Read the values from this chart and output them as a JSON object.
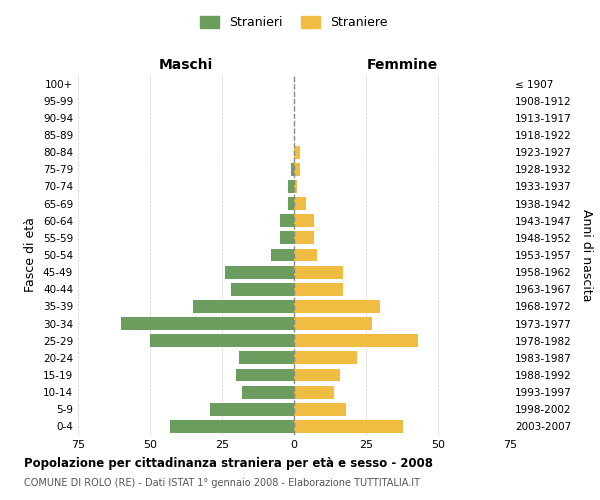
{
  "age_groups": [
    "0-4",
    "5-9",
    "10-14",
    "15-19",
    "20-24",
    "25-29",
    "30-34",
    "35-39",
    "40-44",
    "45-49",
    "50-54",
    "55-59",
    "60-64",
    "65-69",
    "70-74",
    "75-79",
    "80-84",
    "85-89",
    "90-94",
    "95-99",
    "100+"
  ],
  "birth_years": [
    "2003-2007",
    "1998-2002",
    "1993-1997",
    "1988-1992",
    "1983-1987",
    "1978-1982",
    "1973-1977",
    "1968-1972",
    "1963-1967",
    "1958-1962",
    "1953-1957",
    "1948-1952",
    "1943-1947",
    "1938-1942",
    "1933-1937",
    "1928-1932",
    "1923-1927",
    "1918-1922",
    "1913-1917",
    "1908-1912",
    "≤ 1907"
  ],
  "maschi": [
    43,
    29,
    18,
    20,
    19,
    50,
    60,
    35,
    22,
    24,
    8,
    5,
    5,
    2,
    2,
    1,
    0,
    0,
    0,
    0,
    0
  ],
  "femmine": [
    38,
    18,
    14,
    16,
    22,
    43,
    27,
    30,
    17,
    17,
    8,
    7,
    7,
    4,
    1,
    2,
    2,
    0,
    0,
    0,
    0
  ],
  "maschi_color": "#6b9e5e",
  "femmine_color": "#f0bc42",
  "bar_height": 0.75,
  "xlim": 75,
  "title": "Popolazione per cittadinanza straniera per età e sesso - 2008",
  "subtitle": "COMUNE DI ROLO (RE) - Dati ISTAT 1° gennaio 2008 - Elaborazione TUTTITALIA.IT",
  "xlabel_left": "Maschi",
  "xlabel_right": "Femmine",
  "ylabel_left": "Fasce di età",
  "ylabel_right": "Anni di nascita",
  "legend_maschi": "Stranieri",
  "legend_femmine": "Straniere",
  "grid_color": "#cccccc",
  "background_color": "#ffffff"
}
